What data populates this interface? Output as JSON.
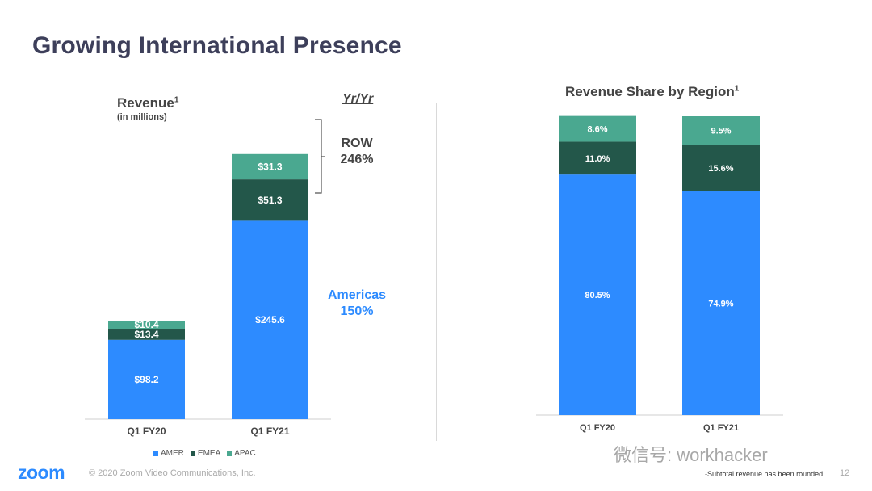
{
  "page": {
    "title": "Growing International Presence",
    "copyright": "© 2020 Zoom Video Communications, Inc.",
    "footnote": "¹Subtotal revenue has been rounded",
    "page_number": "12",
    "logo": "zoom",
    "watermark": "微信号: workhacker"
  },
  "colors": {
    "AMER": "#2d8bff",
    "EMEA": "#23574a",
    "APAC": "#4aa890"
  },
  "left": {
    "label": "Revenue",
    "label_sup": "1",
    "sublabel": "(in millions)",
    "yr_header": "Yr/Yr",
    "row_label": "ROW",
    "row_pct": "246%",
    "amer_label": "Americas",
    "amer_pct": "150%"
  },
  "right": {
    "title": "Revenue Share by Region",
    "title_sup": "1"
  },
  "chart_data": [
    {
      "type": "bar",
      "stacked": true,
      "title": "Revenue",
      "categories": [
        "Q1 FY20",
        "Q1 FY21"
      ],
      "series": [
        {
          "name": "AMER",
          "values": [
            98.2,
            245.6
          ],
          "labels": [
            "$98.2",
            "$245.6"
          ]
        },
        {
          "name": "EMEA",
          "values": [
            13.4,
            51.3
          ],
          "labels": [
            "$13.4",
            "$51.3"
          ]
        },
        {
          "name": "APAC",
          "values": [
            10.4,
            31.3
          ],
          "labels": [
            "$10.4",
            "$31.3"
          ]
        }
      ],
      "legend": "bottom"
    },
    {
      "type": "bar",
      "stacked": true,
      "title": "Revenue Share by Region",
      "categories": [
        "Q1 FY20",
        "Q1 FY21"
      ],
      "series": [
        {
          "name": "AMER",
          "values": [
            80.5,
            74.9
          ],
          "labels": [
            "80.5%",
            "74.9%"
          ]
        },
        {
          "name": "EMEA",
          "values": [
            11.0,
            15.6
          ],
          "labels": [
            "11.0%",
            "15.6%"
          ]
        },
        {
          "name": "APAC",
          "values": [
            8.6,
            9.5
          ],
          "labels": [
            "8.6%",
            "9.5%"
          ]
        }
      ]
    }
  ]
}
